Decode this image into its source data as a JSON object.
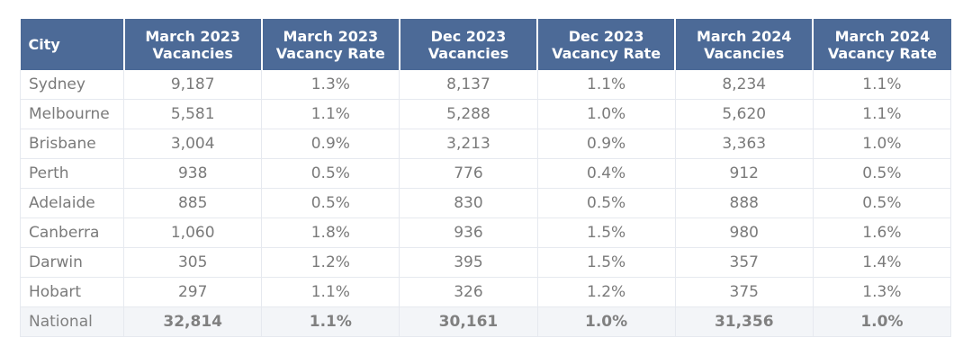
{
  "table": {
    "headers": [
      {
        "line1": "City",
        "line2": ""
      },
      {
        "line1": "March 2023",
        "line2": "Vacancies"
      },
      {
        "line1": "March 2023",
        "line2": "Vacancy Rate"
      },
      {
        "line1": "Dec 2023",
        "line2": "Vacancies"
      },
      {
        "line1": "Dec 2023",
        "line2": "Vacancy Rate"
      },
      {
        "line1": "March 2024",
        "line2": "Vacancies"
      },
      {
        "line1": "March 2024",
        "line2": "Vacancy Rate"
      }
    ],
    "rows": [
      [
        "Sydney",
        "9,187",
        "1.3%",
        "8,137",
        "1.1%",
        "8,234",
        "1.1%"
      ],
      [
        "Melbourne",
        "5,581",
        "1.1%",
        "5,288",
        "1.0%",
        "5,620",
        "1.1%"
      ],
      [
        "Brisbane",
        "3,004",
        "0.9%",
        "3,213",
        "0.9%",
        "3,363",
        "1.0%"
      ],
      [
        "Perth",
        "938",
        "0.5%",
        "776",
        "0.4%",
        "912",
        "0.5%"
      ],
      [
        "Adelaide",
        "885",
        "0.5%",
        "830",
        "0.5%",
        "888",
        "0.5%"
      ],
      [
        "Canberra",
        "1,060",
        "1.8%",
        "936",
        "1.5%",
        "980",
        "1.6%"
      ],
      [
        "Darwin",
        "305",
        "1.2%",
        "395",
        "1.5%",
        "357",
        "1.4%"
      ],
      [
        "Hobart",
        "297",
        "1.1%",
        "326",
        "1.2%",
        "375",
        "1.3%"
      ]
    ],
    "total": [
      "National",
      "32,814",
      "1.1%",
      "30,161",
      "1.0%",
      "31,356",
      "1.0%"
    ]
  },
  "colors": {
    "header_bg": "#4c6a97",
    "header_text": "#ffffff",
    "cell_text": "#7a7a7a",
    "total_row_bg": "#f3f5f8",
    "grid_line": "#e6e9ef"
  }
}
